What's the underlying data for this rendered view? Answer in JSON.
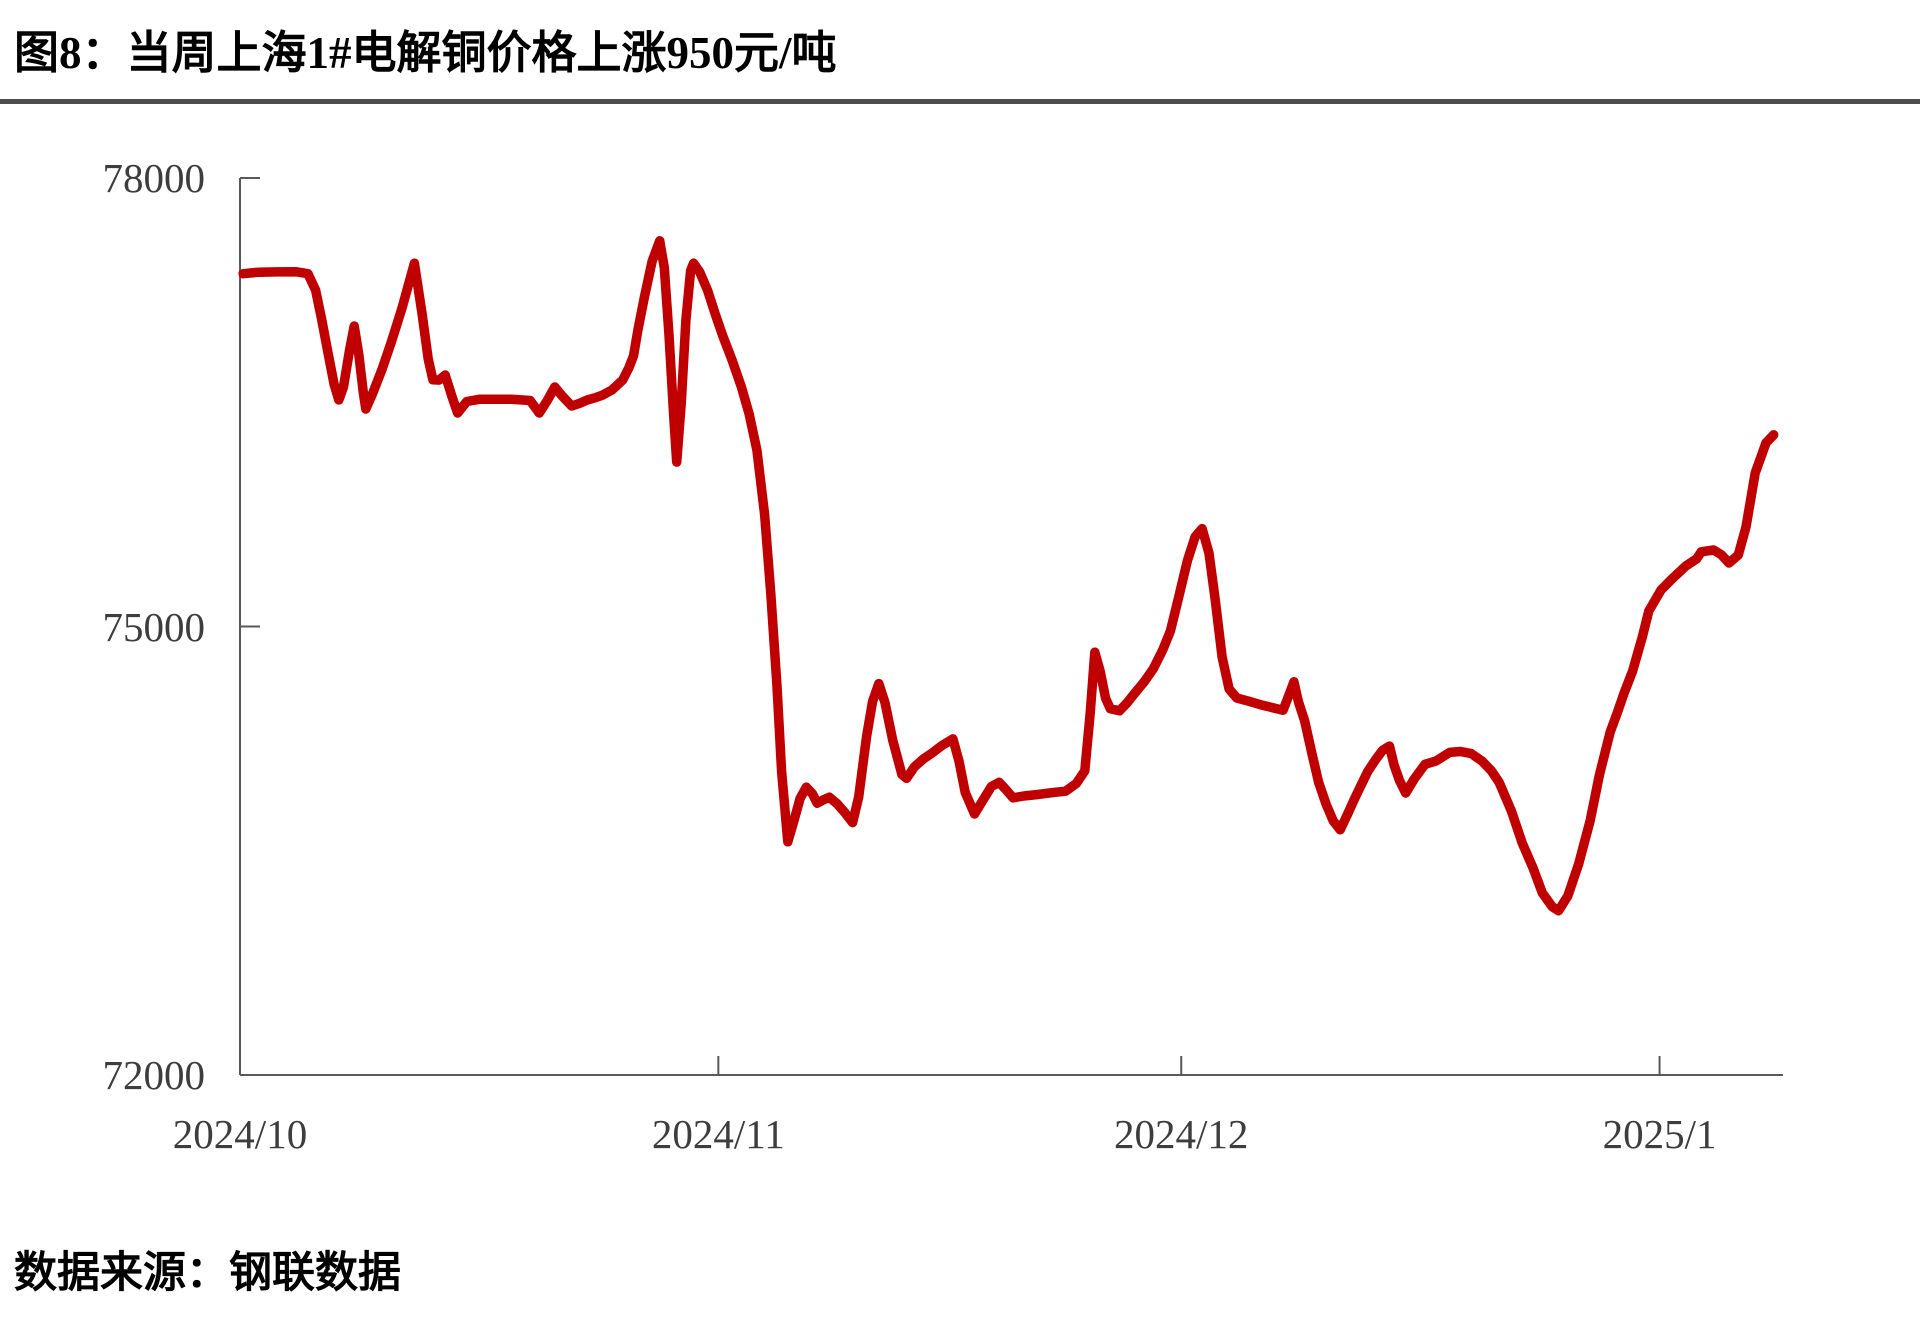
{
  "figure": {
    "title": "图8：当周上海1#电解铜价格上涨950元/吨",
    "source_label": "数据来源：钢联数据"
  },
  "chart_data": {
    "type": "line",
    "title": "当周上海1#电解铜价格上涨950元/吨",
    "xlabel": "",
    "ylabel": "",
    "grid": false,
    "legend": "none",
    "line_color": "#C00000",
    "axis_color": "#595959",
    "label_color": "#3d3d3d",
    "x_unit": "days from 2024/10/1",
    "xlim": [
      0,
      100
    ],
    "ylim": [
      72000,
      78000
    ],
    "yticks": [
      {
        "value": 78000,
        "label": "78000"
      },
      {
        "value": 75000,
        "label": "75000"
      },
      {
        "value": 72000,
        "label": "72000"
      }
    ],
    "xticks": [
      {
        "day": 0,
        "label": "2024/10"
      },
      {
        "day": 31,
        "label": "2024/11"
      },
      {
        "day": 61,
        "label": "2024/12"
      },
      {
        "day": 92,
        "label": "2025/1"
      }
    ],
    "series": [
      {
        "color": "#C00000",
        "points": [
          [
            0.2,
            77360
          ],
          [
            1.2,
            77370
          ],
          [
            2.4,
            77372
          ],
          [
            3.6,
            77373
          ],
          [
            4.4,
            77360
          ],
          [
            4.9,
            77250
          ],
          [
            5.3,
            77050
          ],
          [
            5.7,
            76830
          ],
          [
            6.1,
            76620
          ],
          [
            6.4,
            76515
          ],
          [
            6.7,
            76600
          ],
          [
            7.1,
            76850
          ],
          [
            7.4,
            77010
          ],
          [
            7.7,
            76820
          ],
          [
            8.0,
            76560
          ],
          [
            8.15,
            76455
          ],
          [
            8.6,
            76560
          ],
          [
            9.2,
            76720
          ],
          [
            9.8,
            76900
          ],
          [
            10.5,
            77130
          ],
          [
            11.3,
            77430
          ],
          [
            11.8,
            77090
          ],
          [
            12.2,
            76790
          ],
          [
            12.5,
            76650
          ],
          [
            12.9,
            76648
          ],
          [
            13.3,
            76682
          ],
          [
            13.7,
            76550
          ],
          [
            14.1,
            76428
          ],
          [
            14.7,
            76505
          ],
          [
            15.5,
            76520
          ],
          [
            16.5,
            76520
          ],
          [
            17.6,
            76520
          ],
          [
            18.8,
            76512
          ],
          [
            19.4,
            76428
          ],
          [
            19.9,
            76510
          ],
          [
            20.4,
            76602
          ],
          [
            20.9,
            76540
          ],
          [
            21.5,
            76475
          ],
          [
            22.0,
            76492
          ],
          [
            22.5,
            76515
          ],
          [
            23.0,
            76530
          ],
          [
            23.5,
            76548
          ],
          [
            24.1,
            76582
          ],
          [
            24.8,
            76649
          ],
          [
            25.2,
            76729
          ],
          [
            25.5,
            76810
          ],
          [
            25.8,
            76990
          ],
          [
            26.2,
            77200
          ],
          [
            26.7,
            77440
          ],
          [
            27.2,
            77580
          ],
          [
            27.5,
            77400
          ],
          [
            27.8,
            76950
          ],
          [
            28.1,
            76420
          ],
          [
            28.3,
            76100
          ],
          [
            28.6,
            76500
          ],
          [
            28.9,
            77050
          ],
          [
            29.2,
            77380
          ],
          [
            29.4,
            77430
          ],
          [
            29.8,
            77370
          ],
          [
            30.3,
            77250
          ],
          [
            30.8,
            77090
          ],
          [
            31.3,
            76940
          ],
          [
            31.9,
            76780
          ],
          [
            32.5,
            76600
          ],
          [
            33.0,
            76420
          ],
          [
            33.5,
            76180
          ],
          [
            34.0,
            75750
          ],
          [
            34.4,
            75220
          ],
          [
            34.8,
            74600
          ],
          [
            35.1,
            74030
          ],
          [
            35.5,
            73560
          ],
          [
            35.9,
            73700
          ],
          [
            36.3,
            73850
          ],
          [
            36.7,
            73925
          ],
          [
            37.1,
            73880
          ],
          [
            37.4,
            73818
          ],
          [
            37.8,
            73840
          ],
          [
            38.2,
            73858
          ],
          [
            38.7,
            73815
          ],
          [
            39.2,
            73755
          ],
          [
            39.7,
            73688
          ],
          [
            40.1,
            73860
          ],
          [
            40.6,
            74260
          ],
          [
            41.0,
            74500
          ],
          [
            41.4,
            74618
          ],
          [
            41.8,
            74490
          ],
          [
            42.3,
            74240
          ],
          [
            42.9,
            74010
          ],
          [
            43.2,
            73984
          ],
          [
            43.7,
            74060
          ],
          [
            44.3,
            74115
          ],
          [
            44.8,
            74150
          ],
          [
            45.5,
            74205
          ],
          [
            46.2,
            74248
          ],
          [
            46.6,
            74100
          ],
          [
            47.0,
            73890
          ],
          [
            47.6,
            73746
          ],
          [
            48.1,
            73830
          ],
          [
            48.7,
            73930
          ],
          [
            49.2,
            73958
          ],
          [
            49.7,
            73902
          ],
          [
            50.1,
            73854
          ],
          [
            50.8,
            73866
          ],
          [
            51.7,
            73876
          ],
          [
            52.6,
            73888
          ],
          [
            53.5,
            73898
          ],
          [
            54.2,
            73950
          ],
          [
            54.75,
            74035
          ],
          [
            55.1,
            74420
          ],
          [
            55.4,
            74828
          ],
          [
            55.75,
            74700
          ],
          [
            56.1,
            74520
          ],
          [
            56.4,
            74450
          ],
          [
            57.0,
            74436
          ],
          [
            57.5,
            74490
          ],
          [
            58.0,
            74555
          ],
          [
            58.6,
            74630
          ],
          [
            59.2,
            74720
          ],
          [
            59.8,
            74843
          ],
          [
            60.3,
            74970
          ],
          [
            60.8,
            75180
          ],
          [
            61.4,
            75440
          ],
          [
            61.9,
            75600
          ],
          [
            62.35,
            75655
          ],
          [
            62.8,
            75490
          ],
          [
            63.2,
            75180
          ],
          [
            63.65,
            74796
          ],
          [
            64.1,
            74582
          ],
          [
            64.6,
            74522
          ],
          [
            65.4,
            74500
          ],
          [
            66.3,
            74472
          ],
          [
            67.2,
            74450
          ],
          [
            67.6,
            74440
          ],
          [
            68.05,
            74560
          ],
          [
            68.3,
            74630
          ],
          [
            68.6,
            74495
          ],
          [
            69.0,
            74368
          ],
          [
            69.45,
            74160
          ],
          [
            69.9,
            73958
          ],
          [
            70.4,
            73808
          ],
          [
            70.85,
            73700
          ],
          [
            71.3,
            73640
          ],
          [
            71.75,
            73738
          ],
          [
            72.2,
            73840
          ],
          [
            72.65,
            73938
          ],
          [
            73.1,
            74032
          ],
          [
            73.6,
            74110
          ],
          [
            74.05,
            74172
          ],
          [
            74.5,
            74200
          ],
          [
            74.8,
            74070
          ],
          [
            75.15,
            73968
          ],
          [
            75.55,
            73886
          ],
          [
            76.1,
            73980
          ],
          [
            76.8,
            74078
          ],
          [
            77.5,
            74100
          ],
          [
            78.4,
            74158
          ],
          [
            79.1,
            74164
          ],
          [
            79.8,
            74150
          ],
          [
            80.5,
            74100
          ],
          [
            81.1,
            74035
          ],
          [
            81.6,
            73958
          ],
          [
            82.4,
            73766
          ],
          [
            83.1,
            73552
          ],
          [
            83.8,
            73385
          ],
          [
            84.4,
            73218
          ],
          [
            85.05,
            73125
          ],
          [
            85.45,
            73098
          ],
          [
            86.05,
            73197
          ],
          [
            86.75,
            73410
          ],
          [
            87.5,
            73700
          ],
          [
            88.1,
            74007
          ],
          [
            88.8,
            74294
          ],
          [
            89.3,
            74435
          ],
          [
            89.7,
            74555
          ],
          [
            90.25,
            74702
          ],
          [
            90.9,
            74937
          ],
          [
            91.3,
            75104
          ],
          [
            92.1,
            75245
          ],
          [
            92.8,
            75318
          ],
          [
            93.7,
            75405
          ],
          [
            94.4,
            75452
          ],
          [
            94.7,
            75500
          ],
          [
            95.5,
            75512
          ],
          [
            96.0,
            75480
          ],
          [
            96.5,
            75425
          ],
          [
            97.1,
            75478
          ],
          [
            97.6,
            75666
          ],
          [
            97.9,
            75846
          ],
          [
            98.2,
            76027
          ],
          [
            98.9,
            76228
          ],
          [
            99.4,
            76282
          ]
        ]
      }
    ]
  }
}
